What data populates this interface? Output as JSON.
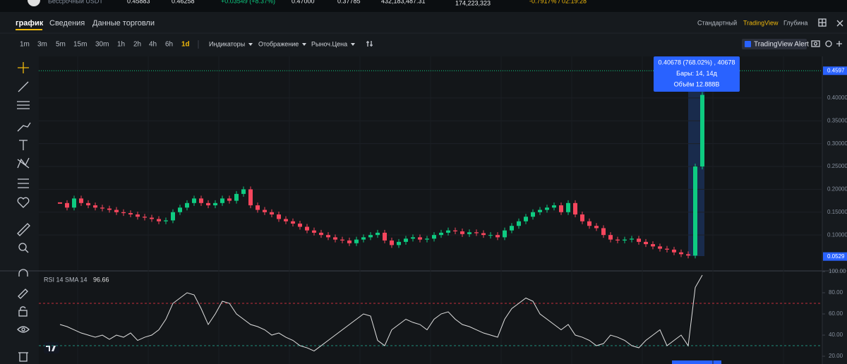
{
  "ticker_bar": {
    "label": "Бессрочный USDT",
    "items": [
      "0.45883",
      "0.46258",
      "+0.03549 (+8.37%)",
      "0.47000",
      "0.37785",
      "432,183,487.31",
      "174,223,323",
      "-0.7917% / 02:19:28"
    ]
  },
  "tabs": [
    "график",
    "Сведения",
    "Данные торговли"
  ],
  "views": [
    "Стандартный",
    "TradingView",
    "Глубина"
  ],
  "intervals": [
    "1m",
    "3m",
    "5m",
    "15m",
    "30m",
    "1h",
    "2h",
    "4h",
    "6h",
    "1d"
  ],
  "menus": [
    "Индикаторы",
    "Отображение",
    "Рыноч.Цена"
  ],
  "alert_button": "TradingView Alert",
  "tooltip": {
    "line1": "0.40678 (768.02%) , 40678",
    "line2": "Бары: 14, 14д",
    "line3": "Объём 12.888B"
  },
  "price_chart": {
    "type": "candlestick",
    "close": [
      0.17,
      0.16,
      0.18,
      0.17,
      0.165,
      0.16,
      0.158,
      0.155,
      0.15,
      0.148,
      0.145,
      0.14,
      0.138,
      0.135,
      0.13,
      0.132,
      0.15,
      0.16,
      0.17,
      0.18,
      0.17,
      0.165,
      0.17,
      0.18,
      0.175,
      0.19,
      0.2,
      0.165,
      0.155,
      0.15,
      0.145,
      0.135,
      0.13,
      0.125,
      0.118,
      0.11,
      0.105,
      0.1,
      0.095,
      0.09,
      0.088,
      0.082,
      0.09,
      0.095,
      0.1,
      0.105,
      0.088,
      0.078,
      0.085,
      0.092,
      0.095,
      0.09,
      0.092,
      0.1,
      0.105,
      0.11,
      0.108,
      0.102,
      0.106,
      0.104,
      0.1,
      0.1,
      0.095,
      0.11,
      0.12,
      0.13,
      0.14,
      0.15,
      0.155,
      0.16,
      0.165,
      0.15,
      0.17,
      0.145,
      0.13,
      0.12,
      0.115,
      0.1,
      0.09,
      0.088,
      0.09,
      0.092,
      0.085,
      0.08,
      0.075,
      0.07,
      0.068,
      0.062,
      0.058,
      0.055,
      0.25,
      0.40678
    ],
    "ylim": [
      0.023,
      0.491
    ],
    "yticks": [
      {
        "value": 0.4,
        "label": "0.40000"
      },
      {
        "value": 0.35,
        "label": "0.35000"
      },
      {
        "value": 0.3,
        "label": "0.30000"
      },
      {
        "value": 0.25,
        "label": "0.25000"
      },
      {
        "value": 0.2,
        "label": "0.20000"
      },
      {
        "value": 0.15,
        "label": "0.15000"
      },
      {
        "value": 0.1,
        "label": "0.10000"
      }
    ],
    "last_price": 0.4597,
    "low_price": 0.0529
  },
  "rsi_chart": {
    "type": "line",
    "title": "RSI 14 SMA 14",
    "last_value": 96.66,
    "values": [
      50,
      48,
      45,
      42,
      40,
      38,
      40,
      36,
      40,
      38,
      42,
      35,
      38,
      40,
      45,
      55,
      70,
      75,
      80,
      78,
      65,
      50,
      60,
      72,
      70,
      60,
      55,
      50,
      48,
      45,
      40,
      42,
      38,
      35,
      30,
      28,
      25,
      30,
      35,
      40,
      45,
      50,
      55,
      60,
      58,
      35,
      30,
      45,
      50,
      55,
      52,
      50,
      45,
      55,
      60,
      62,
      55,
      50,
      48,
      45,
      42,
      40,
      38,
      55,
      65,
      70,
      75,
      72,
      60,
      55,
      50,
      45,
      50,
      40,
      38,
      35,
      30,
      32,
      40,
      38,
      35,
      30,
      28,
      35,
      40,
      45,
      30,
      35,
      40,
      30,
      85,
      96.66
    ],
    "ylim": [
      12.7,
      100
    ],
    "yticks": [
      {
        "value": 100,
        "label": "100.00"
      },
      {
        "value": 80,
        "label": "80.00"
      },
      {
        "value": 60,
        "label": "60.00"
      },
      {
        "value": 40,
        "label": "40.00"
      },
      {
        "value": 20,
        "label": "20.00"
      }
    ],
    "levels": [
      70,
      30
    ]
  }
}
